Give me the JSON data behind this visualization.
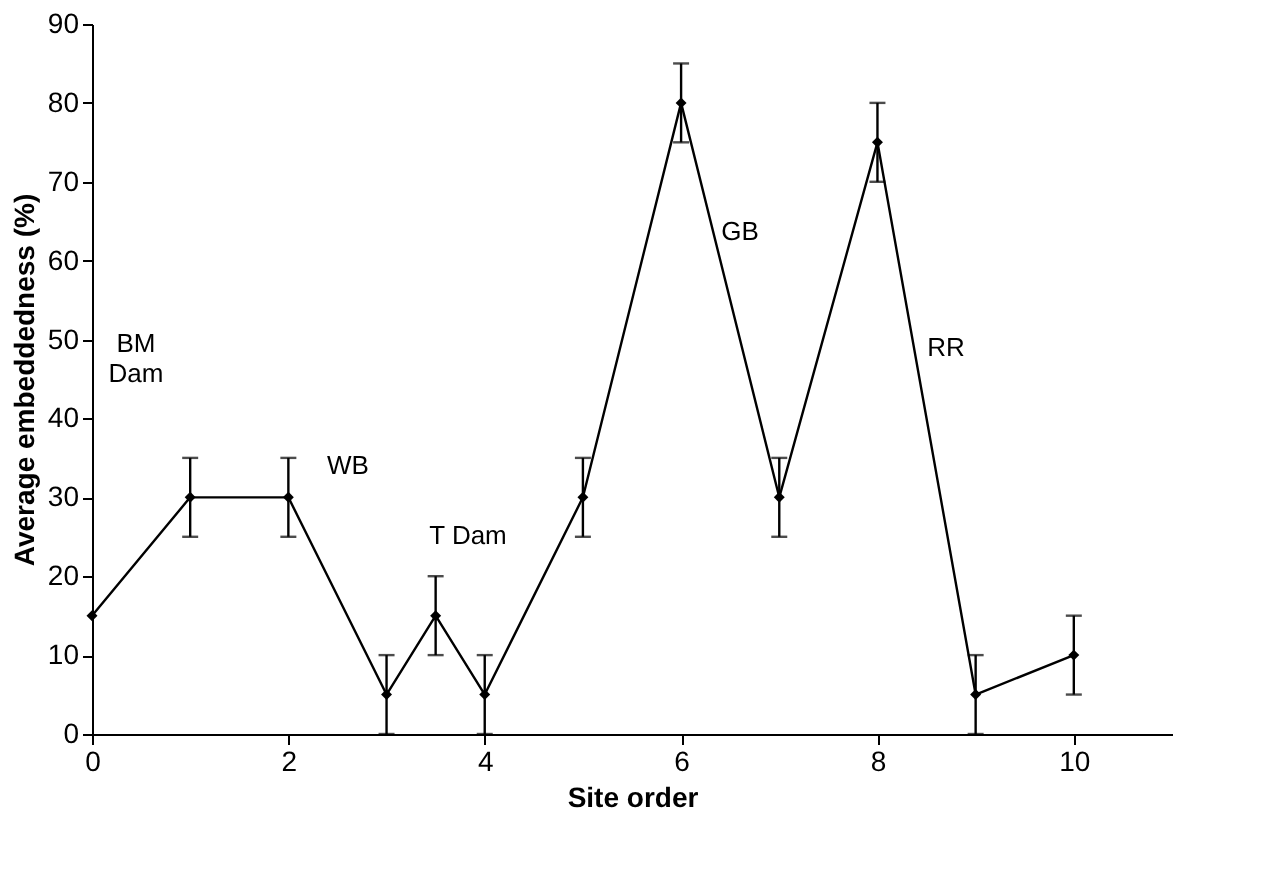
{
  "chart_data": {
    "type": "line",
    "xlabel": "Site order",
    "ylabel": "Average embeddedness (%)",
    "x": [
      0,
      1,
      2,
      3,
      3.5,
      4,
      5,
      6,
      7,
      8,
      9,
      10
    ],
    "series": [
      {
        "color": "#000000",
        "values": [
          15,
          30,
          30,
          5,
          15,
          5,
          30,
          80,
          30,
          75,
          5,
          10
        ],
        "errors": [
          null,
          5,
          5,
          5,
          5,
          5,
          5,
          5,
          5,
          5,
          5,
          5
        ]
      }
    ],
    "xlim": [
      0,
      11
    ],
    "xticks": [
      0,
      2,
      4,
      6,
      8,
      10
    ],
    "ylim": [
      0,
      90
    ],
    "yticks": [
      0,
      10,
      20,
      30,
      40,
      50,
      60,
      70,
      80,
      90
    ],
    "grid": false,
    "marker": "diamond",
    "line_style": "solid",
    "annotations": [
      "BM Dam",
      "WB",
      "T Dam",
      "GB",
      "RR"
    ]
  }
}
